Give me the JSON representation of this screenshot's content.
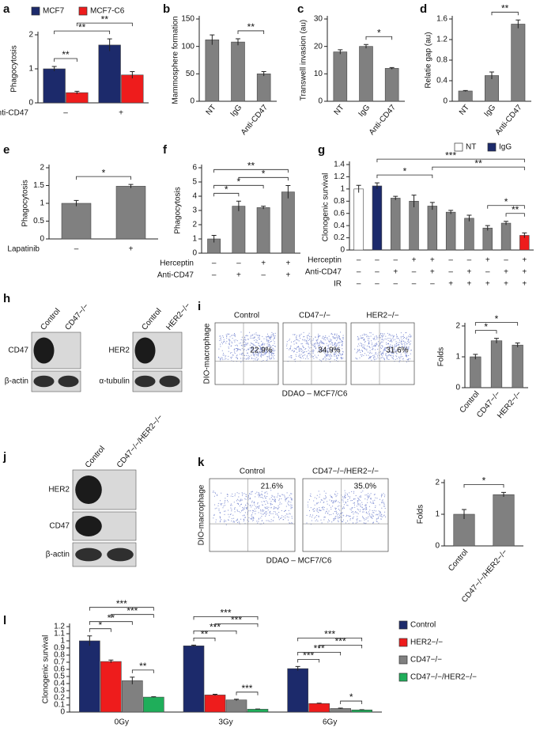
{
  "chart_data": [
    {
      "panel": "a",
      "type": "bar",
      "ylabel": "Phagocytosis",
      "category_label": "Anti-CD47",
      "categories": [
        "–",
        "+"
      ],
      "series": [
        {
          "name": "MCF7",
          "color": "#1c2a6b",
          "values": [
            1.0,
            1.7
          ],
          "errors": [
            0.07,
            0.18
          ]
        },
        {
          "name": "MCF7-C6",
          "color": "#ee1c1c",
          "values": [
            0.3,
            0.82
          ],
          "errors": [
            0.04,
            0.1
          ]
        }
      ],
      "ylim": [
        0,
        2
      ],
      "yticks": [
        0,
        1,
        2
      ],
      "legend": "top",
      "significance": [
        {
          "text": "**",
          "bars": [
            0,
            1
          ]
        },
        {
          "text": "**",
          "bars": [
            0,
            2
          ]
        },
        {
          "text": "**",
          "bars": [
            1,
            3
          ]
        }
      ]
    },
    {
      "panel": "b",
      "type": "bar",
      "ylabel": "Mammosphere formation",
      "categories": [
        "NT",
        "IgG",
        "Anti-CD47"
      ],
      "values": [
        112,
        108,
        50
      ],
      "errors": [
        9,
        6,
        4
      ],
      "color": "#808080",
      "ylim": [
        0,
        150
      ],
      "yticks": [
        0,
        50,
        100,
        150
      ],
      "significance": [
        {
          "text": "**",
          "bars": [
            1,
            2
          ]
        }
      ]
    },
    {
      "panel": "c",
      "type": "bar",
      "ylabel": "Transwell invasion (au)",
      "categories": [
        "NT",
        "IgG",
        "Anti-CD47"
      ],
      "values": [
        18,
        20,
        12
      ],
      "errors": [
        0.8,
        0.7,
        0.3
      ],
      "color": "#808080",
      "ylim": [
        0,
        30
      ],
      "yticks": [
        0,
        10,
        20,
        30
      ],
      "significance": [
        {
          "text": "*",
          "bars": [
            1,
            2
          ]
        }
      ]
    },
    {
      "panel": "d",
      "type": "bar",
      "ylabel": "Relatie gap (au)",
      "categories": [
        "NT",
        "IgG",
        "Anti-CD47"
      ],
      "values": [
        0.2,
        0.5,
        1.5
      ],
      "errors": [
        0.01,
        0.07,
        0.08
      ],
      "color": "#808080",
      "ylim": [
        0,
        1.6
      ],
      "yticks": [
        0,
        0.4,
        0.8,
        1.2,
        1.6
      ],
      "significance": [
        {
          "text": "**",
          "bars": [
            1,
            2
          ]
        }
      ]
    },
    {
      "panel": "e",
      "type": "bar",
      "ylabel": "Phagocytosis",
      "category_label": "Lapatinib",
      "categories": [
        "–",
        "+"
      ],
      "values": [
        1.0,
        1.48
      ],
      "errors": [
        0.08,
        0.05
      ],
      "color": "#808080",
      "ylim": [
        0,
        2
      ],
      "yticks": [
        0,
        0.5,
        1,
        1.5,
        2
      ],
      "significance": [
        {
          "text": "*",
          "bars": [
            0,
            1
          ]
        }
      ]
    },
    {
      "panel": "f",
      "type": "bar",
      "ylabel": "Phagocytosis",
      "conditions": [
        {
          "name": "Herceptin",
          "values": [
            "–",
            "–",
            "+",
            "+"
          ]
        },
        {
          "name": "Anti-CD47",
          "values": [
            "–",
            "+",
            "–",
            "+"
          ]
        }
      ],
      "values": [
        1.0,
        3.3,
        3.2,
        4.3
      ],
      "errors": [
        0.25,
        0.35,
        0.1,
        0.45
      ],
      "color": "#808080",
      "ylim": [
        0,
        6
      ],
      "yticks": [
        0,
        1,
        2,
        3,
        4,
        5,
        6
      ],
      "significance": [
        {
          "text": "*",
          "bars": [
            0,
            1
          ]
        },
        {
          "text": "*",
          "bars": [
            0,
            2
          ]
        },
        {
          "text": "**",
          "bars": [
            0,
            3
          ]
        },
        {
          "text": "*",
          "bars": [
            1,
            3
          ]
        }
      ]
    },
    {
      "panel": "g",
      "type": "bar",
      "ylabel": "Clonogenic survival",
      "legend": "top",
      "legend_items": [
        {
          "name": "NT",
          "color": "#ffffff"
        },
        {
          "name": "IgG",
          "color": "#1c2a6b"
        }
      ],
      "conditions": [
        {
          "name": "Herceptin",
          "values": [
            "–",
            "–",
            "–",
            "+",
            "+",
            "–",
            "–",
            "+",
            "–",
            "+"
          ]
        },
        {
          "name": "Anti-CD47",
          "values": [
            "–",
            "–",
            "+",
            "–",
            "+",
            "–",
            "+",
            "–",
            "+",
            "+"
          ]
        },
        {
          "name": "IR",
          "values": [
            "–",
            "–",
            "–",
            "–",
            "–",
            "+",
            "+",
            "+",
            "+",
            "+"
          ]
        }
      ],
      "values": [
        1.0,
        1.05,
        0.85,
        0.8,
        0.72,
        0.62,
        0.52,
        0.36,
        0.44,
        0.24
      ],
      "errors": [
        0.06,
        0.05,
        0.03,
        0.1,
        0.06,
        0.03,
        0.05,
        0.04,
        0.03,
        0.04
      ],
      "colors": [
        "#ffffff",
        "#1c2a6b",
        "#808080",
        "#808080",
        "#808080",
        "#808080",
        "#808080",
        "#808080",
        "#808080",
        "#ee1c1c"
      ],
      "ylim": [
        0,
        1.4
      ],
      "yticks": [
        0,
        0.2,
        0.4,
        0.6,
        0.8,
        1,
        1.2,
        1.4
      ],
      "significance": [
        {
          "text": "*",
          "bars": [
            1,
            4
          ]
        },
        {
          "text": "***",
          "bars": [
            1,
            9
          ]
        },
        {
          "text": "**",
          "bars": [
            4,
            9
          ]
        },
        {
          "text": "*",
          "bars": [
            7,
            9
          ]
        },
        {
          "text": "**",
          "bars": [
            8,
            9
          ]
        }
      ]
    },
    {
      "type": "bar",
      "ylabel": "Folds",
      "categories": [
        "Control",
        "CD47−/−",
        "HER2−/−"
      ],
      "values": [
        1.0,
        1.52,
        1.38
      ],
      "errors": [
        0.08,
        0.08,
        0.07
      ],
      "color": "#808080",
      "ylim": [
        0,
        2
      ],
      "yticks": [
        0,
        1,
        2
      ],
      "significance": [
        {
          "text": "*",
          "bars": [
            0,
            1
          ]
        },
        {
          "text": "*",
          "bars": [
            0,
            2
          ]
        }
      ]
    },
    {
      "type": "bar",
      "ylabel": "Folds",
      "categories": [
        "Control",
        "CD47−/−/HER2−/−"
      ],
      "values": [
        1.0,
        1.62
      ],
      "errors": [
        0.15,
        0.07
      ],
      "color": "#808080",
      "ylim": [
        0,
        2
      ],
      "yticks": [
        0,
        1,
        2
      ],
      "significance": [
        {
          "text": "*",
          "bars": [
            0,
            1
          ]
        }
      ]
    },
    {
      "panel": "l",
      "type": "bar",
      "ylabel": "Clonogenic survival",
      "categories": [
        "0Gy",
        "3Gy",
        "6Gy"
      ],
      "legend": "right",
      "series": [
        {
          "name": "Control",
          "color": "#1c2a6b",
          "values": [
            1.0,
            0.93,
            0.61
          ],
          "errors": [
            0.07,
            0.01,
            0.03
          ]
        },
        {
          "name": "HER2−/−",
          "color": "#ee1c1c",
          "values": [
            0.71,
            0.24,
            0.12
          ],
          "errors": [
            0.02,
            0.01,
            0.005
          ]
        },
        {
          "name": "CD47−/−",
          "color": "#808080",
          "values": [
            0.44,
            0.17,
            0.05
          ],
          "errors": [
            0.05,
            0.01,
            0.005
          ]
        },
        {
          "name": "CD47−/−/HER2−/−",
          "color": "#1fae5a",
          "values": [
            0.21,
            0.04,
            0.03
          ],
          "errors": [
            0.005,
            0.003,
            0.003
          ]
        }
      ],
      "ylim": [
        0,
        1.2
      ],
      "yticks": [
        0,
        0.1,
        0.2,
        0.3,
        0.4,
        0.5,
        0.6,
        0.7,
        0.8,
        0.9,
        1,
        1.1,
        1.2
      ],
      "significance": [
        {
          "text": "*",
          "bars": [
            0,
            1
          ]
        },
        {
          "text": "**",
          "bars": [
            0,
            2
          ]
        },
        {
          "text": "***",
          "bars": [
            0,
            3
          ]
        },
        {
          "text": "***",
          "bars": [
            1,
            3
          ]
        },
        {
          "text": "**",
          "bars": [
            2,
            3
          ]
        },
        {
          "text": "**",
          "bars": [
            4,
            5
          ]
        },
        {
          "text": "***",
          "bars": [
            4,
            6
          ]
        },
        {
          "text": "***",
          "bars": [
            4,
            7
          ]
        },
        {
          "text": "***",
          "bars": [
            5,
            7
          ]
        },
        {
          "text": "***",
          "bars": [
            6,
            7
          ]
        },
        {
          "text": "***",
          "bars": [
            8,
            9
          ]
        },
        {
          "text": "***",
          "bars": [
            8,
            10
          ]
        },
        {
          "text": "***",
          "bars": [
            8,
            11
          ]
        },
        {
          "text": "***",
          "bars": [
            9,
            11
          ]
        },
        {
          "text": "*",
          "bars": [
            10,
            11
          ]
        }
      ]
    }
  ],
  "blots": [
    {
      "panel": "h",
      "lanes": [
        "Control",
        "CD47−/−"
      ],
      "rows": [
        "CD47",
        "β-actin"
      ]
    },
    {
      "lanes": [
        "Control",
        "HER2−/−"
      ],
      "rows": [
        "HER2",
        "α-tubulin"
      ]
    },
    {
      "panel": "j",
      "lanes": [
        "Control",
        "CD47−/−/HER2−/−"
      ],
      "rows": [
        "HER2",
        "CD47",
        "β-actin"
      ]
    }
  ],
  "flow": [
    {
      "panel": "i",
      "ylabel": "DIO-macrophage",
      "xlabel": "DDAO – MCF7/C6",
      "plots": [
        {
          "title": "Control",
          "percent": "22.9%"
        },
        {
          "title": "CD47−/−",
          "percent": "34.9%"
        },
        {
          "title": "HER2−/−",
          "percent": "31.6%"
        }
      ]
    },
    {
      "panel": "k",
      "ylabel": "DIO-macrophage",
      "xlabel": "DDAO – MCF7/C6",
      "plots": [
        {
          "title": "Control",
          "percent": "21.6%"
        },
        {
          "title": "CD47−/−/HER2−/−",
          "percent": "35.0%"
        }
      ]
    }
  ]
}
